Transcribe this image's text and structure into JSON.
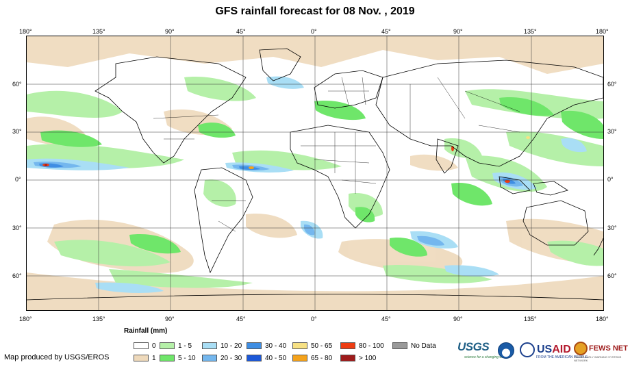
{
  "title": "GFS rainfall forecast for 08 Nov. , 2019",
  "axes": {
    "lon_ticks": [
      "180°",
      "135°",
      "90°",
      "45°",
      "0°",
      "45°",
      "90°",
      "135°",
      "180°"
    ],
    "lat_ticks": [
      "60°",
      "30°",
      "0°",
      "30°",
      "60°"
    ]
  },
  "legend": {
    "title": "Rainfall (mm)",
    "items": [
      {
        "label": "0",
        "color": "#ffffff"
      },
      {
        "label": "1",
        "color": "#eed9bb"
      },
      {
        "label": "1 - 5",
        "color": "#b5f0a8"
      },
      {
        "label": "5 - 10",
        "color": "#6fe66a"
      },
      {
        "label": "10 - 20",
        "color": "#a9def5"
      },
      {
        "label": "20 - 30",
        "color": "#74b7ee"
      },
      {
        "label": "30 - 40",
        "color": "#3f8ee3"
      },
      {
        "label": "40 - 50",
        "color": "#1c58d8"
      },
      {
        "label": "50 - 65",
        "color": "#f7e184"
      },
      {
        "label": "65 - 80",
        "color": "#f4a21b"
      },
      {
        "label": "80 - 100",
        "color": "#ee3c12"
      },
      {
        "label": "> 100",
        "color": "#9e1b1b"
      },
      {
        "label": "No Data",
        "color": "#9a9a9a"
      }
    ]
  },
  "credit": "Map produced by USGS/EROS",
  "logos": {
    "usgs": "USGS",
    "usgs_tagline": "science for a changing world",
    "noaa": "noaa-logo",
    "usaid_prefix": "US",
    "usaid_suffix": "AID",
    "usaid_tagline": "FROM THE AMERICAN PEOPLE",
    "fews": "FEWS NET",
    "fews_tagline": "FAMINE EARLY WARNING SYSTEMS NETWORK"
  }
}
